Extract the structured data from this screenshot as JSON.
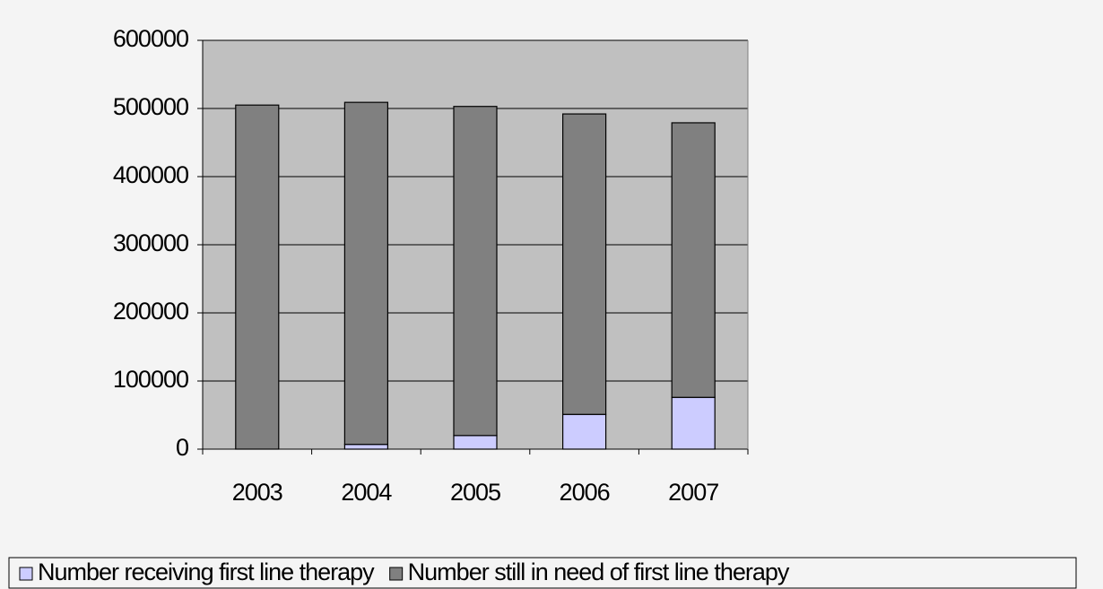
{
  "chart_data": {
    "type": "stacked_bar",
    "categories": [
      "2003",
      "2004",
      "2005",
      "2006",
      "2007"
    ],
    "series": [
      {
        "name": "Number receiving first line therapy",
        "color": "#ccccff",
        "values": [
          0,
          7000,
          20000,
          51000,
          76000
        ]
      },
      {
        "name": "Number still in need of first line therapy",
        "color": "#808080",
        "values": [
          505000,
          502000,
          483000,
          441000,
          403000
        ]
      }
    ],
    "ylim": [
      0,
      600000
    ],
    "yticks": [
      0,
      100000,
      200000,
      300000,
      400000,
      500000,
      600000
    ],
    "grid": true,
    "legend": "bottom"
  }
}
